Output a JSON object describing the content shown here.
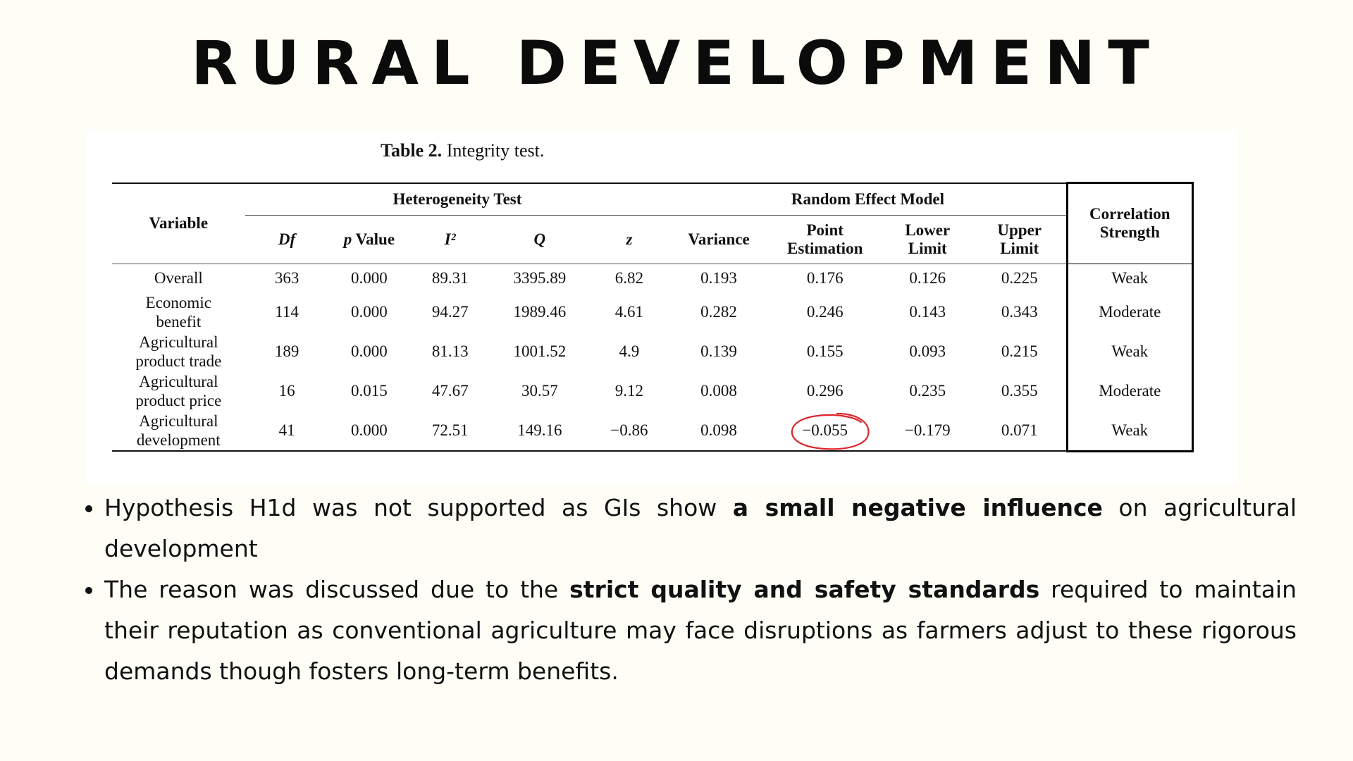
{
  "slide": {
    "title": "RURAL DEVELOPMENT"
  },
  "table": {
    "caption_label": "Table 2.",
    "caption_text": "Integrity test.",
    "group_headers": {
      "heterogeneity": "Heterogeneity Test",
      "random_effect": "Random Effect Model"
    },
    "headers": {
      "variable": "Variable",
      "df": "Df",
      "p_value_p": "p",
      "p_value_rest": "Value",
      "i2": "I²",
      "q": "Q",
      "z": "z",
      "variance": "Variance",
      "point_1": "Point",
      "point_2": "Estimation",
      "lower_1": "Lower",
      "lower_2": "Limit",
      "upper_1": "Upper",
      "upper_2": "Limit",
      "corr_1": "Correlation",
      "corr_2": "Strength"
    },
    "rows": [
      {
        "variable_1": "Overall",
        "variable_2": "",
        "df": "363",
        "p": "0.000",
        "i2": "89.31",
        "q": "3395.89",
        "z": "6.82",
        "variance": "0.193",
        "point": "0.176",
        "lower": "0.126",
        "upper": "0.225",
        "strength": "Weak"
      },
      {
        "variable_1": "Economic",
        "variable_2": "benefit",
        "df": "114",
        "p": "0.000",
        "i2": "94.27",
        "q": "1989.46",
        "z": "4.61",
        "variance": "0.282",
        "point": "0.246",
        "lower": "0.143",
        "upper": "0.343",
        "strength": "Moderate"
      },
      {
        "variable_1": "Agricultural",
        "variable_2": "product trade",
        "df": "189",
        "p": "0.000",
        "i2": "81.13",
        "q": "1001.52",
        "z": "4.9",
        "variance": "0.139",
        "point": "0.155",
        "lower": "0.093",
        "upper": "0.215",
        "strength": "Weak"
      },
      {
        "variable_1": "Agricultural",
        "variable_2": "product price",
        "df": "16",
        "p": "0.015",
        "i2": "47.67",
        "q": "30.57",
        "z": "9.12",
        "variance": "0.008",
        "point": "0.296",
        "lower": "0.235",
        "upper": "0.355",
        "strength": "Moderate"
      },
      {
        "variable_1": "Agricultural",
        "variable_2": "development",
        "df": "41",
        "p": "0.000",
        "i2": "72.51",
        "q": "149.16",
        "z": "−0.86",
        "variance": "0.098",
        "point": "−0.055",
        "lower": "−0.179",
        "upper": "0.071",
        "strength": "Weak"
      }
    ],
    "highlight_color": "#d9262c",
    "box_color": "#000000"
  },
  "bullets": [
    {
      "before": "Hypothesis H1d was not supported as GIs show ",
      "bold": "a small negative influence",
      "after": " on agricultural development"
    },
    {
      "before": "The reason was discussed due to the ",
      "bold": "strict quality and safety standards",
      "after": " required to maintain their reputation as conventional agriculture may face disruptions as farmers adjust to these rigorous demands though fosters long-term benefits."
    }
  ]
}
